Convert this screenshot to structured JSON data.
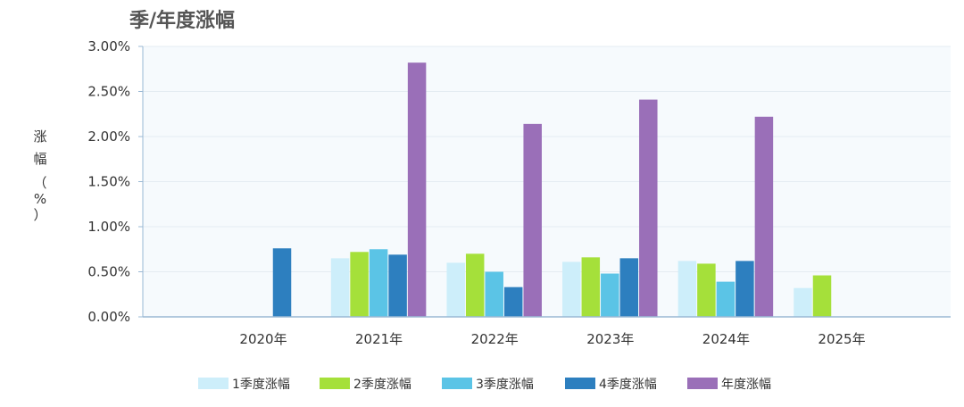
{
  "chart_data": {
    "type": "bar",
    "title": "季/年度涨幅",
    "ylabel": "涨幅（%）",
    "ylabel_chars": [
      "涨",
      "幅",
      "（",
      "%",
      "）"
    ],
    "categories": [
      "2020年",
      "2021年",
      "2022年",
      "2023年",
      "2024年",
      "2025年"
    ],
    "y_ticks": [
      "0.00%",
      "0.50%",
      "1.00%",
      "1.50%",
      "2.00%",
      "2.50%",
      "3.00%"
    ],
    "ylim": [
      0,
      3
    ],
    "grid": true,
    "legend_position": "bottom",
    "series": [
      {
        "name": "1季度涨幅",
        "color": "#cdeefa",
        "values": [
          null,
          0.65,
          0.6,
          0.61,
          0.62,
          0.32
        ]
      },
      {
        "name": "2季度涨幅",
        "color": "#a5e03a",
        "values": [
          null,
          0.72,
          0.7,
          0.66,
          0.59,
          0.46
        ]
      },
      {
        "name": "3季度涨幅",
        "color": "#5bc4e6",
        "values": [
          null,
          0.75,
          0.5,
          0.48,
          0.39,
          null
        ]
      },
      {
        "name": "4季度涨幅",
        "color": "#2d7fbf",
        "values": [
          0.76,
          0.69,
          0.33,
          0.65,
          0.62,
          null
        ]
      },
      {
        "name": "年度涨幅",
        "color": "#9a6fb8",
        "values": [
          null,
          2.82,
          2.14,
          2.41,
          2.22,
          null
        ]
      }
    ]
  }
}
